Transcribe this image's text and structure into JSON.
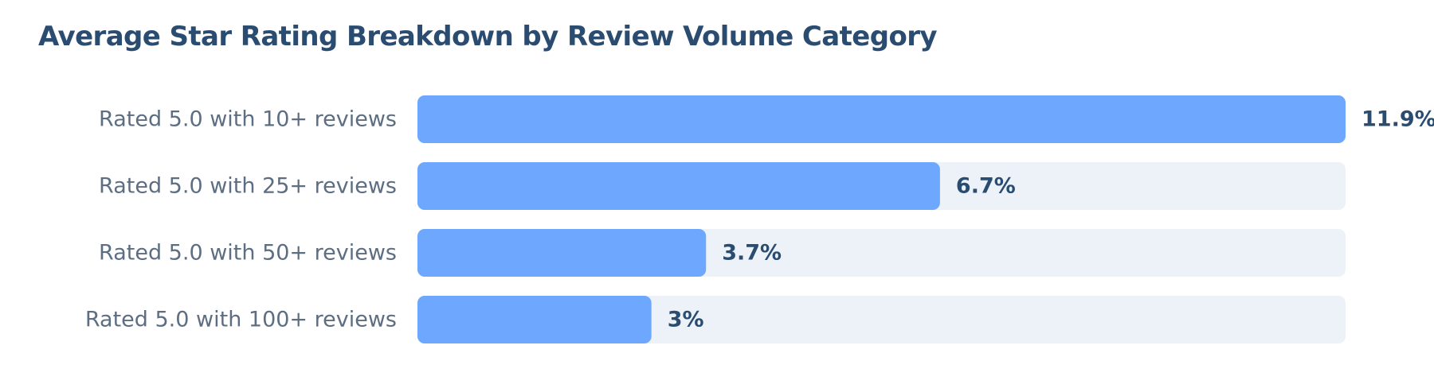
{
  "chart_data": {
    "type": "bar",
    "orientation": "horizontal",
    "title": "Average Star Rating Breakdown by Review Volume Category",
    "categories": [
      "Rated 5.0 with 10+ reviews",
      "Rated 5.0 with 25+ reviews",
      "Rated 5.0 with 50+ reviews",
      "Rated 5.0 with 100+ reviews"
    ],
    "values": [
      11.9,
      6.7,
      3.7,
      3
    ],
    "value_labels": [
      "11.9%",
      "6.7%",
      "3.7%",
      "3%"
    ],
    "xlim": [
      0,
      11.9
    ],
    "grid": false,
    "legend": "none"
  },
  "colors": {
    "title": "#2b4c71",
    "category_label": "#5d6e82",
    "value_label": "#2b4c71",
    "bar": "#6ea8fe",
    "track": "#edf2f9"
  }
}
